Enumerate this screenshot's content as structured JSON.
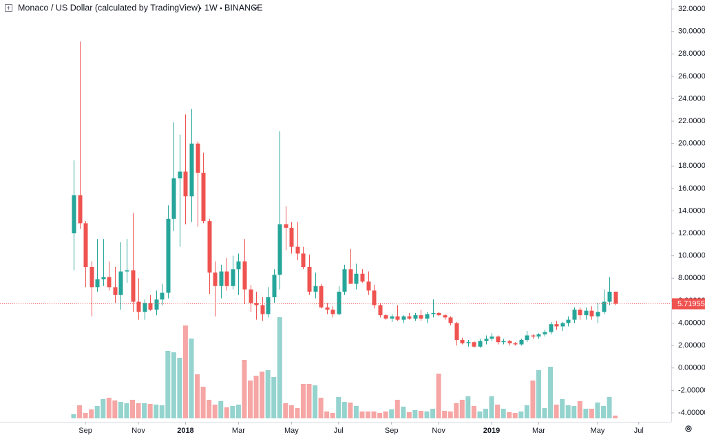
{
  "chart_data": {
    "type": "candlestick",
    "title": "Monaco / US Dollar (calculated by TradingView)",
    "interval": "1W",
    "exchange": "BINANCE",
    "categories": [
      null,
      null,
      "Sep",
      null,
      null,
      null,
      null,
      null,
      null,
      null,
      null,
      "Nov",
      null,
      null,
      null,
      null,
      null,
      null,
      null,
      "2018",
      null,
      null,
      null,
      null,
      null,
      null,
      null,
      null,
      "Mar",
      null,
      null,
      null,
      null,
      null,
      null,
      null,
      null,
      "May",
      null,
      null,
      null,
      null,
      null,
      null,
      null,
      "Jul",
      null,
      null,
      null,
      null,
      null,
      null,
      null,
      null,
      "Sep",
      null,
      null,
      null,
      null,
      null,
      null,
      null,
      "Nov",
      null,
      null,
      null,
      null,
      null,
      null,
      null,
      null,
      "2019",
      null,
      null,
      null,
      null,
      null,
      null,
      null,
      "Mar",
      null,
      null,
      null,
      null,
      null,
      null,
      null,
      null,
      null,
      "May",
      null,
      null,
      null,
      null,
      null,
      null,
      "Jul"
    ],
    "open": [
      12.0,
      15.4,
      12.9,
      9.0,
      7.2,
      7.9,
      8.1,
      7.2,
      6.5,
      8.6,
      8.7,
      5.9,
      5.0,
      5.8,
      5.2,
      6.1,
      6.7,
      13.3,
      16.9,
      17.5,
      15.3,
      20.0,
      17.4,
      13.1,
      8.5,
      7.3,
      8.6,
      7.3,
      8.8,
      9.5,
      7.0,
      5.8,
      5.6,
      4.8,
      6.3,
      8.3,
      12.8,
      12.5,
      10.8,
      10.2,
      9.0,
      6.8,
      7.3,
      5.4,
      5.2,
      4.8,
      6.8,
      8.8,
      7.5,
      8.4,
      7.7,
      6.9,
      5.6,
      4.7,
      4.4,
      4.6,
      4.3,
      4.6,
      4.4,
      4.7,
      4.4,
      4.8,
      4.9,
      4.7,
      4.5,
      4.0,
      2.5,
      2.2,
      2.3,
      1.9,
      2.4,
      2.6,
      2.8,
      2.3,
      2.4,
      2.2,
      2.1,
      2.5,
      2.9,
      2.8,
      3.0,
      3.2,
      3.9,
      3.7,
      4.0,
      4.3,
      5.2,
      4.7,
      5.1,
      4.6,
      5.0,
      5.9,
      6.8,
      null,
      null,
      null,
      null
    ],
    "high": [
      18.5,
      29.1,
      13.1,
      9.5,
      11.5,
      11.5,
      9.5,
      9.0,
      11.2,
      11.5,
      13.8,
      8.0,
      6.1,
      6.5,
      6.9,
      7.5,
      14.5,
      21.9,
      20.8,
      22.6,
      23.1,
      20.2,
      19.2,
      13.3,
      9.5,
      9.2,
      9.8,
      10.0,
      10.2,
      11.5,
      7.4,
      6.8,
      6.3,
      7.2,
      8.8,
      21.1,
      14.4,
      13.0,
      13.0,
      10.8,
      10.1,
      8.5,
      7.5,
      5.8,
      5.5,
      7.3,
      9.2,
      10.6,
      9.3,
      8.8,
      8.6,
      7.4,
      5.8,
      4.8,
      4.8,
      5.6,
      4.7,
      4.9,
      4.9,
      5.2,
      5.0,
      6.1,
      5.0,
      4.8,
      4.6,
      4.1,
      2.7,
      2.5,
      2.4,
      2.6,
      2.9,
      3.1,
      2.9,
      2.6,
      2.5,
      2.3,
      2.6,
      3.3,
      3.0,
      3.1,
      3.4,
      4.1,
      4.2,
      4.1,
      4.6,
      5.4,
      5.4,
      5.4,
      5.5,
      5.8,
      7.0,
      8.1,
      6.8,
      null,
      null,
      null,
      null
    ],
    "low": [
      8.7,
      12.4,
      7.2,
      4.6,
      6.8,
      7.3,
      6.9,
      5.8,
      5.2,
      7.6,
      5.0,
      4.3,
      4.3,
      5.1,
      4.7,
      5.6,
      6.2,
      12.2,
      10.8,
      12.8,
      13.0,
      12.6,
      12.9,
      6.6,
      4.6,
      6.2,
      6.9,
      7.0,
      6.5,
      5.7,
      5.0,
      4.3,
      4.2,
      4.5,
      5.8,
      7.0,
      10.5,
      10.2,
      9.6,
      8.8,
      6.5,
      6.2,
      5.3,
      4.8,
      4.5,
      4.7,
      6.5,
      7.5,
      7.0,
      7.6,
      6.5,
      5.3,
      4.5,
      4.3,
      4.1,
      4.2,
      4.0,
      4.3,
      4.2,
      4.2,
      4.0,
      4.5,
      4.6,
      4.3,
      3.8,
      2.0,
      2.1,
      1.9,
      1.8,
      1.8,
      2.1,
      2.4,
      2.1,
      2.1,
      2.0,
      2.0,
      2.0,
      2.3,
      2.6,
      2.6,
      2.8,
      3.0,
      3.4,
      3.3,
      3.7,
      4.0,
      4.3,
      4.3,
      4.3,
      4.0,
      4.8,
      5.6,
      5.6,
      null,
      null,
      null,
      null
    ],
    "close": [
      15.4,
      12.9,
      9.0,
      7.2,
      7.9,
      8.1,
      7.2,
      6.5,
      8.6,
      8.7,
      5.9,
      5.0,
      5.8,
      5.2,
      6.1,
      6.7,
      13.3,
      16.9,
      17.5,
      15.3,
      20.0,
      17.4,
      13.1,
      8.5,
      7.3,
      8.6,
      7.3,
      8.8,
      9.5,
      7.0,
      5.8,
      5.6,
      4.8,
      6.3,
      8.3,
      12.8,
      12.5,
      10.8,
      10.2,
      9.0,
      6.8,
      7.3,
      5.4,
      5.2,
      4.8,
      6.8,
      8.8,
      7.5,
      8.4,
      7.7,
      6.9,
      5.6,
      4.7,
      4.4,
      4.6,
      4.3,
      4.6,
      4.4,
      4.7,
      4.4,
      4.8,
      4.9,
      4.7,
      4.5,
      4.0,
      2.5,
      2.2,
      2.3,
      1.9,
      2.4,
      2.6,
      2.8,
      2.3,
      2.4,
      2.2,
      2.1,
      2.5,
      2.9,
      2.8,
      3.0,
      3.2,
      3.9,
      3.7,
      4.0,
      4.3,
      5.2,
      4.7,
      5.1,
      4.6,
      5.0,
      5.9,
      6.8,
      5.719554,
      null,
      null,
      null,
      null
    ],
    "volume": [
      6,
      19,
      8,
      13,
      18,
      28,
      30,
      26,
      24,
      22,
      27,
      22,
      22,
      21,
      20,
      19,
      98,
      96,
      88,
      135,
      116,
      64,
      46,
      27,
      20,
      25,
      16,
      18,
      20,
      85,
      55,
      62,
      68,
      70,
      60,
      147,
      22,
      19,
      15,
      50,
      50,
      48,
      30,
      10,
      8,
      31,
      24,
      23,
      18,
      10,
      10,
      10,
      8,
      10,
      13,
      27,
      17,
      9,
      12,
      11,
      10,
      14,
      65,
      11,
      10,
      22,
      27,
      32,
      18,
      10,
      14,
      32,
      20,
      14,
      9,
      8,
      10,
      19,
      55,
      70,
      15,
      75,
      20,
      28,
      19,
      18,
      25,
      14,
      14,
      23,
      18,
      31,
      4,
      null,
      null,
      null,
      null
    ],
    "last_price": 5.719554,
    "ylim": [
      -4.8,
      32.8
    ],
    "yticks": [
      {
        "value": -4,
        "label": "-4.000000"
      },
      {
        "value": -2,
        "label": "-2.000000"
      },
      {
        "value": 0,
        "label": "0.000000"
      },
      {
        "value": 2,
        "label": "2.000000"
      },
      {
        "value": 4,
        "label": "4.000000"
      },
      {
        "value": 6,
        "label": "6.000000"
      },
      {
        "value": 8,
        "label": "8.000000"
      },
      {
        "value": 10,
        "label": "10.000000"
      },
      {
        "value": 12,
        "label": "12.000000"
      },
      {
        "value": 14,
        "label": "14.000000"
      },
      {
        "value": 16,
        "label": "16.000000"
      },
      {
        "value": 18,
        "label": "18.000000"
      },
      {
        "value": 20,
        "label": "20.000000"
      },
      {
        "value": 22,
        "label": "22.000000"
      },
      {
        "value": 24,
        "label": "24.000000"
      },
      {
        "value": 26,
        "label": "26.000000"
      },
      {
        "value": 28,
        "label": "28.000000"
      },
      {
        "value": 30,
        "label": "30.000000"
      },
      {
        "value": 32,
        "label": "32.000000"
      }
    ],
    "grid": false,
    "up_color": "#26a69a",
    "down_color": "#ef5350",
    "volume_up_color": "#94d3ce",
    "volume_down_color": "#f5a6a5"
  }
}
